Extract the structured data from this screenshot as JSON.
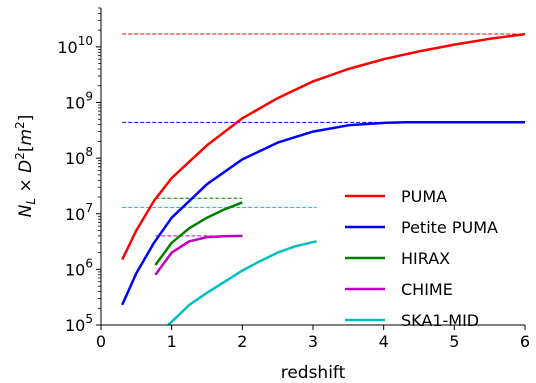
{
  "chart_data": {
    "type": "line",
    "xlabel": "redshift",
    "ylabel_parts": {
      "n": "N",
      "sub": "L",
      "times": " × ",
      "d": "D",
      "sup": "2",
      "bracket_open": "[",
      "m": "m",
      "m_sup": "2",
      "bracket_close": "]"
    },
    "xlim": [
      0,
      6
    ],
    "ylim": [
      100000,
      50000000000
    ],
    "yscale": "log",
    "grid": false,
    "legend_position": "lower-right",
    "x_ticks": [
      "0",
      "1",
      "2",
      "3",
      "4",
      "5",
      "6"
    ],
    "y_ticks": [
      {
        "value": 100000,
        "base": "10",
        "exp": "5"
      },
      {
        "value": 1000000,
        "base": "10",
        "exp": "6"
      },
      {
        "value": 10000000,
        "base": "10",
        "exp": "7"
      },
      {
        "value": 100000000,
        "base": "10",
        "exp": "8"
      },
      {
        "value": 1000000000,
        "base": "10",
        "exp": "9"
      },
      {
        "value": 10000000000,
        "base": "10",
        "exp": "10"
      }
    ],
    "series": [
      {
        "name": "PUMA",
        "color": "#ff0000",
        "x": [
          0.3,
          0.5,
          0.75,
          1.0,
          1.5,
          2.0,
          2.5,
          3.0,
          3.5,
          4.0,
          4.5,
          5.0,
          5.5,
          6.0
        ],
        "y": [
          1500000,
          5000000,
          17000000,
          44000000,
          170000000,
          520000000,
          1200000000,
          2400000000,
          4000000000,
          6000000000,
          8300000000,
          11000000000,
          14000000000,
          17000000000
        ],
        "saturation": {
          "value": 17000000000,
          "x_start": 0.3,
          "x_end": 6.0
        }
      },
      {
        "name": "Petite PUMA",
        "color": "#0000ff",
        "x": [
          0.3,
          0.5,
          0.75,
          1.0,
          1.5,
          2.0,
          2.5,
          3.0,
          3.5,
          4.0,
          4.3,
          5.0,
          6.0
        ],
        "y": [
          230000,
          850000,
          3000000,
          8500000,
          34000000,
          95000000,
          190000000,
          300000000,
          390000000,
          430000000,
          440000000,
          440000000,
          440000000
        ],
        "saturation": {
          "value": 440000000,
          "x_start": 0.3,
          "x_end": 6.0
        }
      },
      {
        "name": "HIRAX",
        "color": "#008000",
        "x": [
          0.77,
          1.0,
          1.25,
          1.5,
          1.75,
          2.0
        ],
        "y": [
          1200000,
          3000000,
          5500000,
          8500000,
          12000000,
          16000000
        ],
        "saturation": {
          "value": 19000000,
          "x_start": 0.77,
          "x_end": 2.0
        }
      },
      {
        "name": "CHIME",
        "color": "#c000c0",
        "x": [
          0.77,
          1.0,
          1.25,
          1.5,
          1.75,
          2.0
        ],
        "y": [
          800000,
          2000000,
          3200000,
          3800000,
          3950000,
          4000000
        ],
        "saturation": {
          "value": 4000000,
          "x_start": 0.77,
          "x_end": 2.0
        }
      },
      {
        "name": "SKA1-MID",
        "color": "#00bfbf",
        "x": [
          0.95,
          1.1,
          1.25,
          1.5,
          1.75,
          2.0,
          2.25,
          2.5,
          2.75,
          3.05
        ],
        "y": [
          100000,
          150000,
          230000,
          380000,
          600000,
          950000,
          1400000,
          2000000,
          2600000,
          3200000
        ],
        "saturation": {
          "value": 13000000,
          "x_start": 0.3,
          "x_end": 3.05
        }
      }
    ]
  }
}
